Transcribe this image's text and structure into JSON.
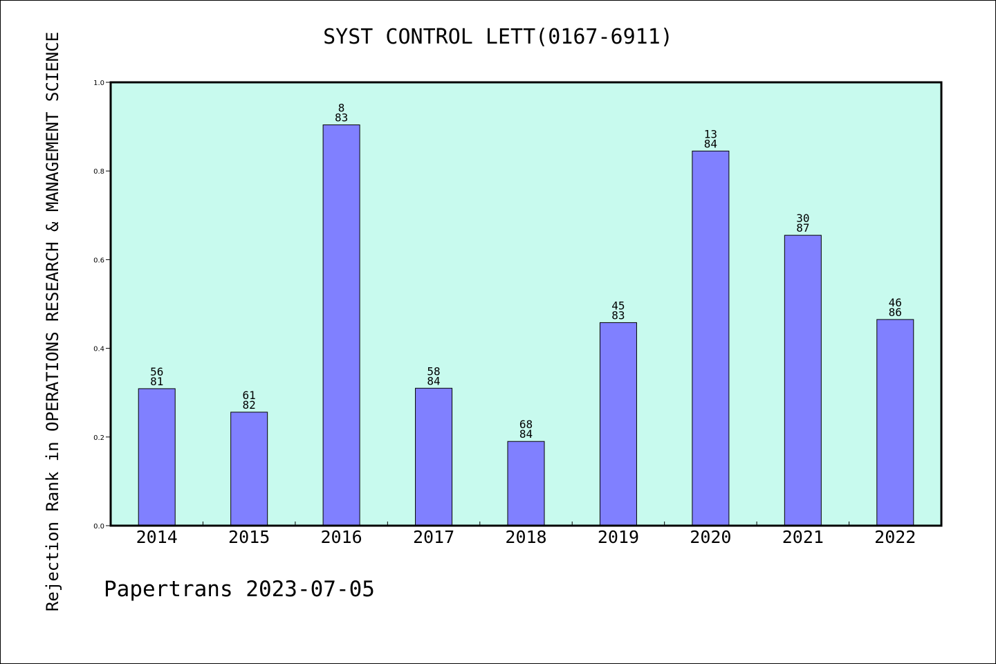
{
  "chart_data": {
    "type": "bar",
    "title": "SYST CONTROL LETT(0167-6911)",
    "ylabel": "Rejection Rank in OPERATIONS RESEARCH & MANAGEMENT SCIENCE",
    "xlabel": "",
    "ylim": [
      0,
      1.0
    ],
    "yticks": [
      "0.0",
      "0.2",
      "0.4",
      "0.6",
      "0.8",
      "1.0"
    ],
    "categories": [
      "2014",
      "2015",
      "2016",
      "2017",
      "2018",
      "2019",
      "2020",
      "2021",
      "2022"
    ],
    "values": [
      0.309,
      0.256,
      0.904,
      0.31,
      0.19,
      0.458,
      0.845,
      0.655,
      0.465
    ],
    "labels_top": [
      "56",
      "61",
      "8",
      "58",
      "68",
      "45",
      "13",
      "30",
      "46"
    ],
    "labels_bottom": [
      "81",
      "82",
      "83",
      "84",
      "84",
      "83",
      "84",
      "87",
      "86"
    ],
    "grid": false,
    "colors": {
      "plot_background": "#c8faee",
      "bar_fill": "#8080ff",
      "bar_edge": "#000000"
    }
  },
  "footer": "Papertrans 2023-07-05"
}
